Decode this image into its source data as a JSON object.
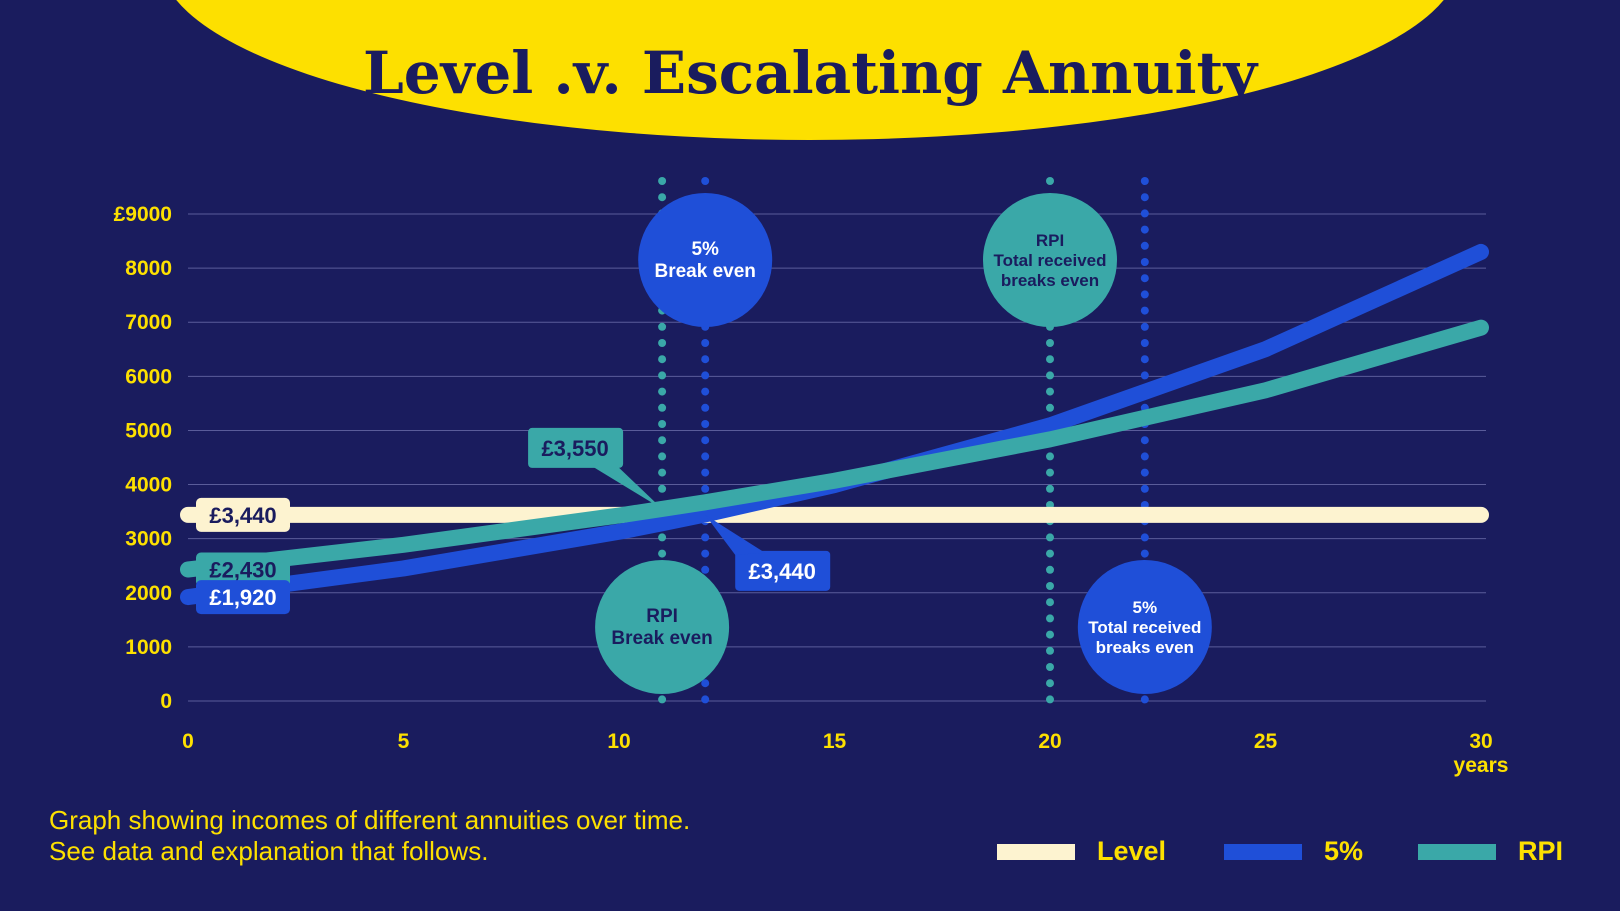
{
  "colors": {
    "background": "#1a1c5e",
    "yellow": "#fde000",
    "level": "#fdf3d0",
    "five_percent": "#1f4fd8",
    "rpi": "#3aa8a8",
    "grid": "#5a5c9a"
  },
  "caption": [
    "Graph showing incomes of different annuities over time.",
    "See data and explanation that follows."
  ],
  "chart_data": {
    "type": "line",
    "title": "Level .v. Escalating Annuity",
    "xlabel": "years",
    "xlim": [
      0,
      30
    ],
    "ylim": [
      0,
      9000
    ],
    "x_ticks": [
      "0",
      "5",
      "10",
      "15",
      "20",
      "25",
      "30"
    ],
    "y_ticks": [
      "0",
      "1000",
      "2000",
      "3000",
      "4000",
      "5000",
      "6000",
      "7000",
      "8000",
      "£9000"
    ],
    "grid": "horizontal",
    "legend_position": "bottom-right",
    "x": [
      0,
      5,
      10,
      11,
      12,
      15,
      20,
      25,
      30
    ],
    "series": [
      {
        "name": "Level",
        "color": "#fdf3d0",
        "values": [
          3440,
          3440,
          3440,
          3440,
          3440,
          3440,
          3440,
          3440,
          3440
        ]
      },
      {
        "name": "5%",
        "color": "#1f4fd8",
        "values": [
          1920,
          2450,
          3127,
          3284,
          3448,
          3991,
          5094,
          6502,
          8299
        ]
      },
      {
        "name": "RPI",
        "color": "#3aa8a8",
        "values": [
          2430,
          2886,
          3428,
          3550,
          3672,
          4071,
          4835,
          5742,
          6900
        ]
      }
    ],
    "start_labels": [
      {
        "text": "£3,440",
        "series": "Level",
        "y": 3440
      },
      {
        "text": "£2,430",
        "series": "RPI",
        "y": 2430
      },
      {
        "text": "£1,920",
        "series": "5%",
        "y": 1920
      }
    ],
    "callouts": [
      {
        "text": "£3,550",
        "series": "RPI",
        "x": 11,
        "y": 3550
      },
      {
        "text": "£3,440",
        "series": "5%",
        "x": 12,
        "y": 3440
      }
    ],
    "markers": [
      {
        "x": 11,
        "color": "#3aa8a8",
        "lines": [
          "RPI",
          "Break even"
        ],
        "position": "below"
      },
      {
        "x": 12,
        "color": "#1f4fd8",
        "lines": [
          "5%",
          "Break even"
        ],
        "position": "above"
      },
      {
        "x": 20,
        "color": "#3aa8a8",
        "lines": [
          "RPI",
          "Total received",
          "breaks even"
        ],
        "position": "above"
      },
      {
        "x": 22.2,
        "color": "#1f4fd8",
        "lines": [
          "5%",
          "Total received",
          "breaks even"
        ],
        "position": "below"
      }
    ]
  }
}
